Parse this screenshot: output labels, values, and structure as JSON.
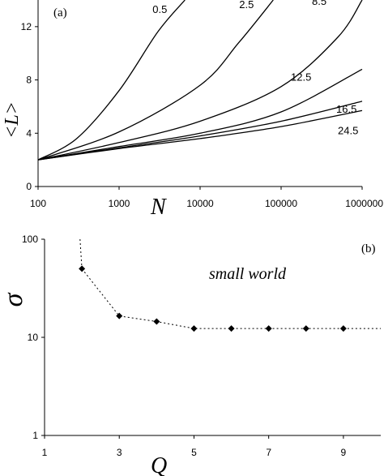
{
  "chart_data": [
    {
      "type": "line",
      "panel_label": "(a)",
      "xlabel": "N",
      "ylabel": "<L>",
      "x_scale": "log",
      "xlim": [
        100,
        1000000
      ],
      "ylim": [
        0,
        14
      ],
      "x_ticks": [
        100,
        1000,
        10000,
        100000,
        1000000
      ],
      "x_tick_labels": [
        "100",
        "1000",
        "10000",
        "100000",
        "1000000"
      ],
      "y_ticks": [
        0,
        4,
        8,
        12
      ],
      "y_tick_labels": [
        "0",
        "4",
        "8",
        "12"
      ],
      "grid": false,
      "series": [
        {
          "name": "0.5",
          "x": [
            100,
            300,
            1000,
            3000,
            6500
          ],
          "y": [
            2.0,
            3.6,
            7.2,
            11.6,
            14.0
          ]
        },
        {
          "name": "2.5",
          "x": [
            100,
            1000,
            10000,
            30000,
            80000
          ],
          "y": [
            2.0,
            4.1,
            7.6,
            10.8,
            14.0
          ]
        },
        {
          "name": "8.5",
          "x": [
            100,
            1000,
            10000,
            100000,
            500000,
            1000000
          ],
          "y": [
            2.0,
            3.3,
            4.9,
            7.5,
            11.2,
            14.0
          ]
        },
        {
          "name": "12.5",
          "x": [
            100,
            1000,
            10000,
            100000,
            1000000
          ],
          "y": [
            2.0,
            3.0,
            4.0,
            5.6,
            8.8
          ]
        },
        {
          "name": "16.5",
          "x": [
            100,
            1000,
            10000,
            100000,
            1000000
          ],
          "y": [
            2.0,
            2.9,
            3.8,
            4.9,
            6.4
          ]
        },
        {
          "name": "24.5",
          "x": [
            100,
            1000,
            10000,
            100000,
            1000000
          ],
          "y": [
            2.0,
            2.85,
            3.6,
            4.5,
            5.7
          ]
        }
      ]
    },
    {
      "type": "line",
      "panel_label": "(b)",
      "xlabel": "Q",
      "ylabel": "σ",
      "y_scale": "log",
      "xlim": [
        1,
        10
      ],
      "ylim": [
        1,
        100
      ],
      "x_ticks": [
        1,
        3,
        5,
        7,
        9
      ],
      "x_tick_labels": [
        "1",
        "3",
        "5",
        "7",
        "9"
      ],
      "y_ticks": [
        1,
        10,
        100
      ],
      "y_tick_labels": [
        "1",
        "10",
        "100"
      ],
      "annotation": "small world",
      "grid": false,
      "series": [
        {
          "x": [
            2,
            3,
            4,
            5,
            6,
            7,
            8,
            9
          ],
          "y": [
            50,
            16.5,
            14.5,
            12.3,
            12.3,
            12.3,
            12.3,
            12.3
          ]
        }
      ],
      "dotted_extensions": [
        {
          "x": [
            1.95,
            2
          ],
          "y": [
            100,
            50
          ]
        },
        {
          "x": [
            9,
            10
          ],
          "y": [
            12.3,
            12.3
          ]
        }
      ]
    }
  ]
}
